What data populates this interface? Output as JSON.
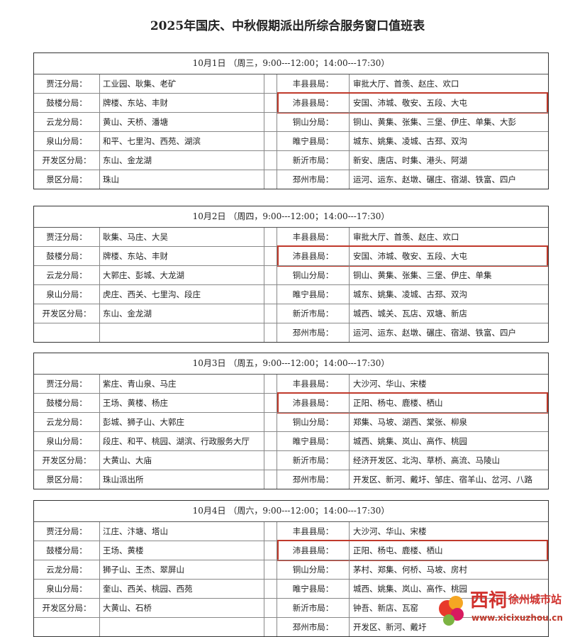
{
  "title": "2025年国庆、中秋假期派出所综合服务窗口值班表",
  "tables": [
    {
      "header": "10月1日 （周三，9:00---12:00；14:00---17:30）",
      "rows": [
        [
          "贾汪分局：",
          "工业园、耿集、老矿",
          "丰县县局：",
          "审批大厅、首羡、赵庄、欢口"
        ],
        [
          "鼓楼分局：",
          "牌楼、东站、丰财",
          "沛县县局：",
          "安国、沛城、敬安、五段、大屯"
        ],
        [
          "云龙分局：",
          "黄山、天桥、潘塘",
          "铜山分局：",
          "铜山、黄集、张集、三堡、伊庄、单集、大彭"
        ],
        [
          "泉山分局：",
          "和平、七里沟、西苑、湖滨",
          "睢宁县局：",
          "城东、姚集、凌城、古邳、双沟"
        ],
        [
          "开发区分局：",
          "东山、金龙湖",
          "新沂市局：",
          "新安、唐店、时集、港头、阿湖"
        ],
        [
          "景区分局：",
          "珠山",
          "邳州市局：",
          "运河、运东、赵墩、碾庄、宿湖、铁富、四户"
        ]
      ]
    },
    {
      "header": "10月2日 （周四，9:00---12:00；14:00---17:30）",
      "rows": [
        [
          "贾汪分局：",
          "耿集、马庄、大吴",
          "丰县县局：",
          "审批大厅、首羡、赵庄、欢口"
        ],
        [
          "鼓楼分局：",
          "牌楼、东站、丰财",
          "沛县县局：",
          "安国、沛城、敬安、五段、大屯"
        ],
        [
          "云龙分局：",
          "大郭庄、彭城、大龙湖",
          "铜山分局：",
          "铜山、黄集、张集、三堡、伊庄、单集"
        ],
        [
          "泉山分局：",
          "虎庄、西关、七里沟、段庄",
          "睢宁县局：",
          "城东、姚集、凌城、古邳、双沟"
        ],
        [
          "开发区分局：",
          "东山、金龙湖",
          "新沂市局：",
          "城西、城关、瓦店、双塘、新店"
        ],
        [
          null,
          null,
          "邳州市局：",
          "运河、运东、赵墩、碾庄、宿湖、铁富、四户"
        ]
      ]
    },
    {
      "header": "10月3日 （周五，9:00---12:00；14:00---17:30）",
      "rows": [
        [
          "贾汪分局：",
          "紫庄、青山泉、马庄",
          "丰县县局：",
          "大沙河、华山、宋楼"
        ],
        [
          "鼓楼分局：",
          "王场、黄楼、杨庄",
          "沛县县局：",
          "正阳、杨屯、鹿楼、栖山"
        ],
        [
          "云龙分局：",
          "彭城、狮子山、大郭庄",
          "铜山分局：",
          "郑集、马坡、湖西、棠张、柳泉"
        ],
        [
          "泉山分局：",
          "段庄、和平、桃园、湖滨、行政服务大厅",
          "睢宁县局：",
          "城西、姚集、岚山、高作、桃园"
        ],
        [
          "开发区分局：",
          "大黄山、大庙",
          "新沂市局：",
          "经济开发区、北沟、草桥、高流、马陵山"
        ],
        [
          "景区分局：",
          "珠山派出所",
          "邳州市局：",
          "开发区、新河、戴圩、邹庄、宿羊山、岔河、八路"
        ]
      ]
    },
    {
      "header": "10月4日 （周六，9:00---12:00；14:00---17:30）",
      "rows": [
        [
          "贾汪分局：",
          "江庄、汴塘、塔山",
          "丰县县局：",
          "大沙河、华山、宋楼"
        ],
        [
          "鼓楼分局：",
          "王场、黄楼",
          "沛县县局：",
          "正阳、杨屯、鹿楼、栖山"
        ],
        [
          "云龙分局：",
          "狮子山、王杰、翠屏山",
          "铜山分局：",
          "茅村、郑集、何桥、马坡、房村"
        ],
        [
          "泉山分局：",
          "奎山、西关、桃园、西苑",
          "睢宁县局：",
          "城西、姚集、岚山、高作、桃园"
        ],
        [
          "开发区分局：",
          "大黄山、石桥",
          "新沂市局：",
          "钟吾、新店、瓦窑"
        ],
        [
          null,
          null,
          "邳州市局：",
          "开发区、新河、戴圩"
        ]
      ]
    }
  ],
  "watermark": {
    "brand": "西祠",
    "site": "徐州城市站",
    "url": "www.xicixuzhou.cn"
  }
}
